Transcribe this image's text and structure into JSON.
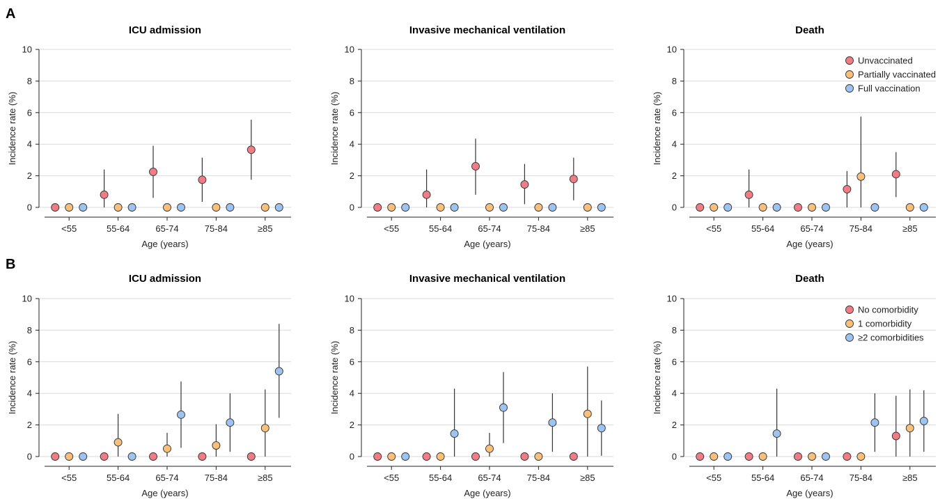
{
  "colors": {
    "red": "#f07c86",
    "orange": "#f9c07c",
    "blue": "#9dc3f0"
  },
  "panels": [
    {
      "letter": "A",
      "legend_labels": [
        "Unvaccinated",
        "Partially vaccinated",
        "Full vaccination"
      ]
    },
    {
      "letter": "B",
      "legend_labels": [
        "No comorbidity",
        "1 comorbidity",
        "≥2 comorbidities"
      ]
    }
  ],
  "chart_data": [
    {
      "type": "scatter",
      "panel": "A",
      "title": "ICU admission",
      "xlabel": "Age (years)",
      "ylabel": "Incidence rate (%)",
      "categories": [
        "<55",
        "55-64",
        "65-74",
        "75-84",
        "≥85"
      ],
      "yticks": [
        "0",
        "2",
        "4",
        "6",
        "8",
        "10"
      ],
      "ylim": [
        0,
        10
      ],
      "grid": true,
      "legend": "none",
      "series": [
        {
          "name": "Unvaccinated",
          "values": [
            0,
            0.8,
            2.25,
            1.75,
            3.65
          ],
          "lower": [
            0,
            0,
            0.6,
            0.35,
            1.75
          ],
          "upper": [
            0,
            2.4,
            3.9,
            3.15,
            5.55
          ]
        },
        {
          "name": "Partially vaccinated",
          "values": [
            0,
            0,
            0,
            0,
            0
          ],
          "lower": [
            0,
            0,
            0,
            0,
            0
          ],
          "upper": [
            0,
            0,
            0,
            0,
            0
          ]
        },
        {
          "name": "Full vaccination",
          "values": [
            0,
            0,
            0,
            0,
            0
          ],
          "lower": [
            0,
            0,
            0,
            0,
            0
          ],
          "upper": [
            0,
            0,
            0,
            0,
            0
          ]
        }
      ]
    },
    {
      "type": "scatter",
      "panel": "A",
      "title": "Invasive mechanical ventilation",
      "xlabel": "Age (years)",
      "ylabel": "Incidence rate (%)",
      "categories": [
        "<55",
        "55-64",
        "65-74",
        "75-84",
        "≥85"
      ],
      "yticks": [
        "0",
        "2",
        "4",
        "6",
        "8",
        "10"
      ],
      "ylim": [
        0,
        10
      ],
      "grid": true,
      "legend": "none",
      "series": [
        {
          "name": "Unvaccinated",
          "values": [
            0,
            0.8,
            2.6,
            1.45,
            1.8
          ],
          "lower": [
            0,
            0,
            0.8,
            0.2,
            0.45
          ],
          "upper": [
            0,
            2.4,
            4.35,
            2.75,
            3.15
          ]
        },
        {
          "name": "Partially vaccinated",
          "values": [
            0,
            0,
            0,
            0,
            0
          ],
          "lower": [
            0,
            0,
            0,
            0,
            0
          ],
          "upper": [
            0,
            0,
            0,
            0,
            0
          ]
        },
        {
          "name": "Full vaccination",
          "values": [
            0,
            0,
            0,
            0,
            0
          ],
          "lower": [
            0,
            0,
            0,
            0,
            0
          ],
          "upper": [
            0,
            0,
            0,
            0,
            0
          ]
        }
      ]
    },
    {
      "type": "scatter",
      "panel": "A",
      "title": "Death",
      "xlabel": "Age (years)",
      "ylabel": "Incidence rate (%)",
      "categories": [
        "<55",
        "55-64",
        "65-74",
        "75-84",
        "≥85"
      ],
      "yticks": [
        "0",
        "2",
        "4",
        "6",
        "8",
        "10"
      ],
      "ylim": [
        0,
        10
      ],
      "grid": true,
      "legend": "top-right",
      "series": [
        {
          "name": "Unvaccinated",
          "values": [
            0,
            0.8,
            0,
            1.15,
            2.1
          ],
          "lower": [
            0,
            0,
            0,
            0,
            0.65
          ],
          "upper": [
            0,
            2.4,
            0,
            2.3,
            3.5
          ]
        },
        {
          "name": "Partially vaccinated",
          "values": [
            0,
            0,
            0,
            1.95,
            0
          ],
          "lower": [
            0,
            0,
            0,
            0,
            0
          ],
          "upper": [
            0,
            0,
            0,
            5.75,
            0
          ]
        },
        {
          "name": "Full vaccination",
          "values": [
            0,
            0,
            0,
            0,
            0
          ],
          "lower": [
            0,
            0,
            0,
            0,
            0
          ],
          "upper": [
            0,
            0,
            0,
            0,
            0
          ]
        }
      ]
    },
    {
      "type": "scatter",
      "panel": "B",
      "title": "ICU admission",
      "xlabel": "Age (years)",
      "ylabel": "Incidence rate (%)",
      "categories": [
        "<55",
        "55-64",
        "65-74",
        "75-84",
        "≥85"
      ],
      "yticks": [
        "0",
        "2",
        "4",
        "6",
        "8",
        "10"
      ],
      "ylim": [
        0,
        10
      ],
      "grid": true,
      "legend": "none",
      "series": [
        {
          "name": "No comorbidity",
          "values": [
            0,
            0,
            0,
            0,
            0
          ],
          "lower": [
            0,
            0,
            0,
            0,
            0
          ],
          "upper": [
            0,
            0,
            0,
            0,
            0
          ]
        },
        {
          "name": "1 comorbidity",
          "values": [
            0,
            0.9,
            0.5,
            0.7,
            1.8
          ],
          "lower": [
            0,
            0,
            0,
            0,
            0
          ],
          "upper": [
            0,
            2.7,
            1.5,
            2.05,
            4.25
          ]
        },
        {
          "name": "≥2 comorbidities",
          "values": [
            0,
            0,
            2.65,
            2.15,
            5.4
          ],
          "lower": [
            0,
            0,
            0.55,
            0.3,
            2.45
          ],
          "upper": [
            0,
            0,
            4.75,
            4.0,
            8.4
          ]
        }
      ]
    },
    {
      "type": "scatter",
      "panel": "B",
      "title": "Invasive mechanical ventilation",
      "xlabel": "Age (years)",
      "ylabel": "Incidence rate (%)",
      "categories": [
        "<55",
        "55-64",
        "65-74",
        "75-84",
        "≥85"
      ],
      "yticks": [
        "0",
        "2",
        "4",
        "6",
        "8",
        "10"
      ],
      "ylim": [
        0,
        10
      ],
      "grid": true,
      "legend": "none",
      "series": [
        {
          "name": "No comorbidity",
          "values": [
            0,
            0,
            0,
            0,
            0
          ],
          "lower": [
            0,
            0,
            0,
            0,
            0
          ],
          "upper": [
            0,
            0,
            0,
            0,
            0
          ]
        },
        {
          "name": "1 comorbidity",
          "values": [
            0,
            0,
            0.5,
            0,
            2.7
          ],
          "lower": [
            0,
            0,
            0,
            0,
            0
          ],
          "upper": [
            0,
            0,
            1.5,
            0,
            5.7
          ]
        },
        {
          "name": "≥2 comorbidities",
          "values": [
            0,
            1.45,
            3.1,
            2.15,
            1.8
          ],
          "lower": [
            0,
            0,
            0.85,
            0.3,
            0.05
          ],
          "upper": [
            0,
            4.3,
            5.35,
            4.0,
            3.55
          ]
        }
      ]
    },
    {
      "type": "scatter",
      "panel": "B",
      "title": "Death",
      "xlabel": "Age (years)",
      "ylabel": "Incidence rate (%)",
      "categories": [
        "<55",
        "55-64",
        "65-74",
        "75-84",
        "≥85"
      ],
      "yticks": [
        "0",
        "2",
        "4",
        "6",
        "8",
        "10"
      ],
      "ylim": [
        0,
        10
      ],
      "grid": true,
      "legend": "top-right",
      "series": [
        {
          "name": "No comorbidity",
          "values": [
            0,
            0,
            0,
            0,
            1.3
          ],
          "lower": [
            0,
            0,
            0,
            0,
            0
          ],
          "upper": [
            0,
            0,
            0,
            0,
            3.85
          ]
        },
        {
          "name": "1 comorbidity",
          "values": [
            0,
            0,
            0,
            0,
            1.8
          ],
          "lower": [
            0,
            0,
            0,
            0,
            0
          ],
          "upper": [
            0,
            0,
            0,
            0,
            4.25
          ]
        },
        {
          "name": "≥2 comorbidities",
          "values": [
            0,
            1.45,
            0,
            2.15,
            2.25
          ],
          "lower": [
            0,
            0,
            0,
            0.3,
            0.3
          ],
          "upper": [
            0,
            4.3,
            0,
            4.0,
            4.2
          ]
        }
      ]
    }
  ]
}
